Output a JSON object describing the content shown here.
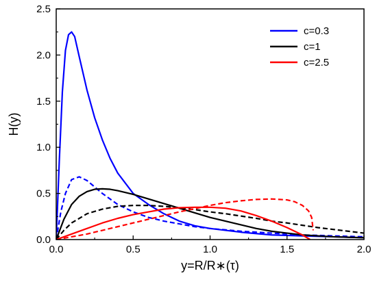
{
  "chart_data": {
    "type": "line",
    "xlabel": "y=R/R∗(τ)",
    "ylabel": "H(y)",
    "xlim": [
      0,
      2.0
    ],
    "ylim": [
      0,
      2.5
    ],
    "xticks": [
      0.0,
      0.5,
      1.0,
      1.5,
      2.0
    ],
    "xtick_labels": [
      "0.0",
      "0.5",
      "1.0",
      "1.5",
      "2.0"
    ],
    "yticks": [
      0.0,
      0.5,
      1.0,
      1.5,
      2.0,
      2.5
    ],
    "ytick_labels": [
      "0.0",
      "0.5",
      "1.0",
      "1.5",
      "2.0",
      "2.5"
    ],
    "legend_position": "top-right",
    "legend": [
      {
        "label": "c=0.3",
        "color": "#0000ff"
      },
      {
        "label": "c=1",
        "color": "#000000"
      },
      {
        "label": "c=2.5",
        "color": "#ff0000"
      }
    ],
    "series": [
      {
        "legend_index": 0,
        "color": "#0000ff",
        "style": "solid",
        "x": [
          0,
          0.02,
          0.04,
          0.06,
          0.08,
          0.1,
          0.12,
          0.15,
          0.2,
          0.25,
          0.3,
          0.35,
          0.4,
          0.5,
          0.6,
          0.7,
          0.8,
          0.9,
          1.0,
          1.2,
          1.4,
          1.6,
          1.8,
          2.0
        ],
        "y": [
          0,
          0.85,
          1.6,
          2.05,
          2.22,
          2.25,
          2.2,
          1.98,
          1.62,
          1.32,
          1.08,
          0.88,
          0.72,
          0.5,
          0.38,
          0.28,
          0.2,
          0.15,
          0.12,
          0.08,
          0.05,
          0.04,
          0.03,
          0.02
        ]
      },
      {
        "legend_index": 0,
        "color": "#0000ff",
        "style": "dashed",
        "x": [
          0,
          0.03,
          0.06,
          0.1,
          0.15,
          0.2,
          0.25,
          0.3,
          0.4,
          0.5,
          0.6,
          0.7,
          0.8,
          0.9,
          1.0,
          1.2,
          1.4,
          1.6,
          1.8,
          2.0
        ],
        "y": [
          0,
          0.3,
          0.5,
          0.65,
          0.68,
          0.64,
          0.57,
          0.5,
          0.38,
          0.3,
          0.24,
          0.2,
          0.17,
          0.14,
          0.12,
          0.09,
          0.07,
          0.05,
          0.04,
          0.03
        ]
      },
      {
        "legend_index": 1,
        "color": "#000000",
        "style": "solid",
        "x": [
          0,
          0.05,
          0.1,
          0.15,
          0.2,
          0.25,
          0.3,
          0.35,
          0.4,
          0.5,
          0.6,
          0.7,
          0.8,
          0.9,
          1.0,
          1.1,
          1.2,
          1.3,
          1.4,
          1.5,
          1.6,
          1.8,
          2.0
        ],
        "y": [
          0,
          0.22,
          0.38,
          0.47,
          0.52,
          0.545,
          0.55,
          0.545,
          0.53,
          0.49,
          0.44,
          0.39,
          0.34,
          0.29,
          0.24,
          0.2,
          0.16,
          0.12,
          0.09,
          0.07,
          0.05,
          0.03,
          0.02
        ]
      },
      {
        "legend_index": 1,
        "color": "#000000",
        "style": "dashed",
        "x": [
          0,
          0.05,
          0.1,
          0.2,
          0.3,
          0.4,
          0.5,
          0.6,
          0.7,
          0.8,
          0.9,
          1.0,
          1.1,
          1.2,
          1.3,
          1.4,
          1.5,
          1.6,
          1.7,
          1.8,
          1.9,
          2.0
        ],
        "y": [
          0,
          0.1,
          0.18,
          0.28,
          0.33,
          0.36,
          0.37,
          0.37,
          0.36,
          0.345,
          0.325,
          0.3,
          0.28,
          0.255,
          0.23,
          0.2,
          0.18,
          0.155,
          0.13,
          0.11,
          0.09,
          0.07
        ]
      },
      {
        "legend_index": 2,
        "color": "#ff0000",
        "style": "solid",
        "x": [
          0,
          0.1,
          0.2,
          0.3,
          0.4,
          0.5,
          0.6,
          0.7,
          0.8,
          0.9,
          1.0,
          1.1,
          1.2,
          1.3,
          1.4,
          1.5,
          1.55,
          1.6,
          1.65
        ],
        "y": [
          0,
          0.06,
          0.12,
          0.18,
          0.23,
          0.27,
          0.3,
          0.33,
          0.345,
          0.35,
          0.35,
          0.34,
          0.31,
          0.26,
          0.2,
          0.13,
          0.09,
          0.05,
          0.0
        ]
      },
      {
        "legend_index": 2,
        "color": "#ff0000",
        "style": "dashed",
        "x": [
          0,
          0.1,
          0.2,
          0.3,
          0.4,
          0.5,
          0.6,
          0.7,
          0.8,
          0.9,
          1.0,
          1.1,
          1.2,
          1.3,
          1.4,
          1.5,
          1.55,
          1.6,
          1.64,
          1.66,
          1.67
        ],
        "y": [
          0,
          0.03,
          0.06,
          0.1,
          0.14,
          0.18,
          0.22,
          0.26,
          0.3,
          0.335,
          0.37,
          0.4,
          0.42,
          0.435,
          0.44,
          0.43,
          0.41,
          0.37,
          0.31,
          0.24,
          0.1
        ]
      }
    ]
  }
}
